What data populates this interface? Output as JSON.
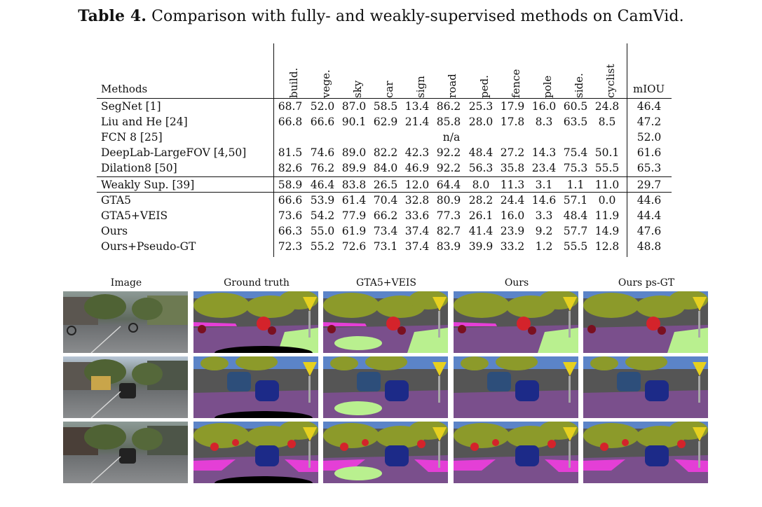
{
  "caption": {
    "label": "Table 4.",
    "text": "Comparison with fully- and weakly-supervised methods on CamVid."
  },
  "table": {
    "methods_header": "Methods",
    "miou_header": "mIOU",
    "class_headers": [
      "build.",
      "vege.",
      "sky",
      "car",
      "sign",
      "road",
      "ped.",
      "fence",
      "pole",
      "side.",
      "cyclist"
    ],
    "rows": [
      {
        "method": "SegNet [1]",
        "values": [
          "68.7",
          "52.0",
          "87.0",
          "58.5",
          "13.4",
          "86.2",
          "25.3",
          "17.9",
          "16.0",
          "60.5",
          "24.8"
        ],
        "miou": "46.4"
      },
      {
        "method": "Liu and He [24]",
        "values": [
          "66.8",
          "66.6",
          "90.1",
          "62.9",
          "21.4",
          "85.8",
          "28.0",
          "17.8",
          "8.3",
          "63.5",
          "8.5"
        ],
        "miou": "47.2"
      },
      {
        "method": "FCN 8 [25]",
        "na": "n/a",
        "miou": "52.0"
      },
      {
        "method": "DeepLab-LargeFOV [4,50]",
        "values": [
          "81.5",
          "74.6",
          "89.0",
          "82.2",
          "42.3",
          "92.2",
          "48.4",
          "27.2",
          "14.3",
          "75.4",
          "50.1"
        ],
        "miou": "61.6"
      },
      {
        "method": "Dilation8 [50]",
        "values": [
          "82.6",
          "76.2",
          "89.9",
          "84.0",
          "46.9",
          "92.2",
          "56.3",
          "35.8",
          "23.4",
          "75.3",
          "55.5"
        ],
        "miou": "65.3"
      },
      {
        "method": "Weakly Sup. [39]",
        "values": [
          "58.9",
          "46.4",
          "83.8",
          "26.5",
          "12.0",
          "64.4",
          "8.0",
          "11.3",
          "3.1",
          "1.1",
          "11.0"
        ],
        "miou": "29.7"
      },
      {
        "method": "GTA5",
        "values": [
          "66.6",
          "53.9",
          "61.4",
          "70.4",
          "32.8",
          "80.9",
          "28.2",
          "24.4",
          "14.6",
          "57.1",
          "0.0"
        ],
        "miou": "44.6"
      },
      {
        "method": "GTA5+VEIS",
        "values": [
          "73.6",
          "54.2",
          "77.9",
          "66.2",
          "33.6",
          "77.3",
          "26.1",
          "16.0",
          "3.3",
          "48.4",
          "11.9"
        ],
        "miou": "44.4"
      },
      {
        "method": "Ours",
        "values": [
          "66.3",
          "55.0",
          "61.9",
          "73.4",
          "37.4",
          "82.7",
          "41.4",
          "23.9",
          "9.2",
          "57.7",
          "14.9"
        ],
        "miou": "47.6"
      },
      {
        "method": "Ours+Pseudo-GT",
        "values": [
          "72.3",
          "55.2",
          "72.6",
          "73.1",
          "37.4",
          "83.9",
          "39.9",
          "33.2",
          "1.2",
          "55.5",
          "12.8"
        ],
        "miou": "48.8"
      }
    ]
  },
  "figure": {
    "column_headers": [
      "Image",
      "Ground truth",
      "GTA5+VEIS",
      "Ours",
      "Ours ps-GT"
    ]
  },
  "palette": {
    "sky": "#5b84c8",
    "building": "#555555",
    "vegetation": "#8c9a2a",
    "road": "#7a4f8c",
    "sidewalk": "#b9f08f",
    "car": "#1c2a88",
    "pedestrian": "#d4232b",
    "cyclist": "#7a1020",
    "sign": "#e6d01f",
    "pole": "#a8a8a8",
    "lane": "#e43fd6"
  }
}
